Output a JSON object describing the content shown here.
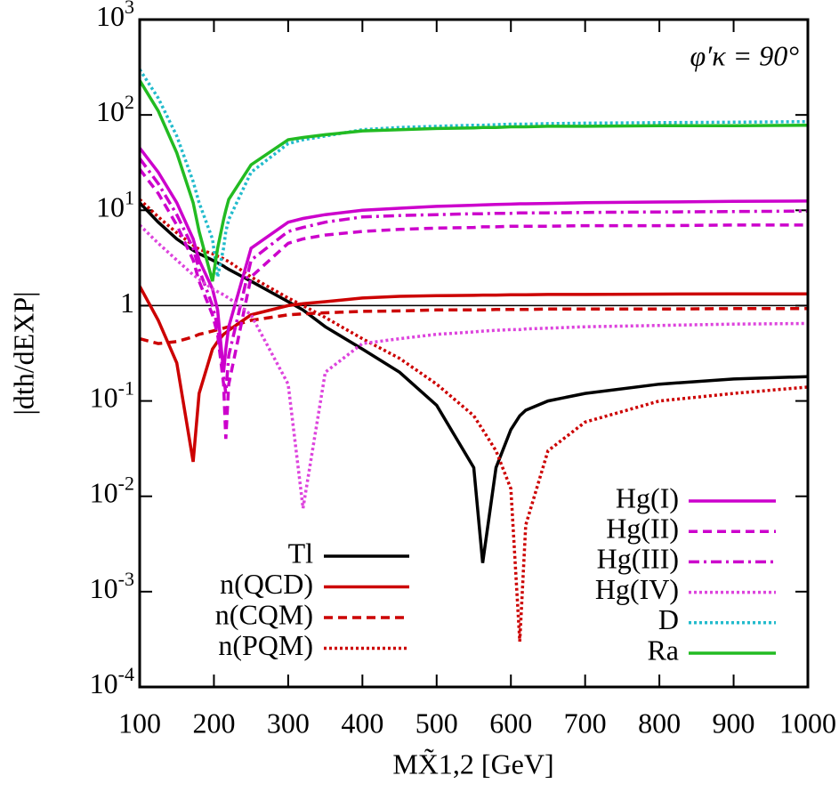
{
  "chart_data": {
    "type": "line",
    "y_label": "|dth/dEXP|",
    "x_label": "MX̃1,2 [GeV]",
    "annotation": "φ′κ = 90°",
    "y_scale": "log",
    "reference_line": 1,
    "xlim": [
      100,
      1000
    ],
    "xticks": [
      100,
      200,
      300,
      400,
      500,
      600,
      700,
      800,
      900,
      1000
    ],
    "ylim": [
      0.0001,
      1000
    ],
    "yticks": [
      {
        "value": 0.0001,
        "label": "10-4"
      },
      {
        "value": 0.001,
        "label": "10-3"
      },
      {
        "value": 0.01,
        "label": "10-2"
      },
      {
        "value": 0.1,
        "label": "10-1"
      },
      1,
      {
        "value": 10,
        "label": "101"
      },
      {
        "value": 100,
        "label": "102"
      },
      {
        "value": 1000,
        "label": "103"
      }
    ],
    "x": [
      100,
      125,
      150,
      172,
      180,
      198,
      205,
      213,
      216,
      220,
      250,
      300,
      320,
      350,
      400,
      450,
      500,
      550,
      562,
      580,
      600,
      612,
      620,
      650,
      700,
      800,
      900,
      1000
    ],
    "series": [
      {
        "name": "Tl",
        "color": "#000000",
        "style": "solid",
        "values": [
          12,
          7.5,
          5,
          3.8,
          3.5,
          3.0,
          2.8,
          2.6,
          2.5,
          2.4,
          1.8,
          1.1,
          0.9,
          0.6,
          0.35,
          0.2,
          0.09,
          0.02,
          0.002,
          0.02,
          0.05,
          0.07,
          0.08,
          0.1,
          0.12,
          0.15,
          0.17,
          0.18
        ]
      },
      {
        "name": "n(QCD)",
        "color": "#cc0000",
        "style": "solid",
        "values": [
          1.6,
          0.7,
          0.25,
          0.023,
          0.12,
          0.35,
          0.42,
          0.5,
          0.52,
          0.55,
          0.8,
          1.0,
          1.05,
          1.1,
          1.2,
          1.25,
          1.27,
          1.28,
          1.29,
          1.29,
          1.3,
          1.3,
          1.3,
          1.31,
          1.31,
          1.32,
          1.33,
          1.33
        ]
      },
      {
        "name": "n(CQM)",
        "color": "#cc0000",
        "style": "dashed",
        "values": [
          0.45,
          0.4,
          0.42,
          0.47,
          0.5,
          0.54,
          0.56,
          0.58,
          0.59,
          0.6,
          0.7,
          0.8,
          0.82,
          0.84,
          0.87,
          0.88,
          0.9,
          0.9,
          0.9,
          0.91,
          0.91,
          0.91,
          0.91,
          0.92,
          0.92,
          0.92,
          0.93,
          0.93
        ]
      },
      {
        "name": "n(PQM)",
        "color": "#cc0000",
        "style": "dotted",
        "values": [
          13,
          8.5,
          5.8,
          4.3,
          3.9,
          3.5,
          3.3,
          3.1,
          3.0,
          2.9,
          2.0,
          1.2,
          1.0,
          0.75,
          0.45,
          0.28,
          0.15,
          0.07,
          0.05,
          0.03,
          0.012,
          0.0003,
          0.005,
          0.03,
          0.06,
          0.1,
          0.12,
          0.14
        ]
      },
      {
        "name": "Hg(I)",
        "color": "#cc00cc",
        "style": "solid",
        "values": [
          45,
          25,
          12,
          5,
          3,
          1.5,
          0.9,
          0.2,
          0.35,
          0.6,
          4,
          7.5,
          8.2,
          9,
          10,
          10.5,
          11,
          11.3,
          11.4,
          11.5,
          11.6,
          11.7,
          11.7,
          11.8,
          12,
          12.2,
          12.4,
          12.5
        ]
      },
      {
        "name": "Hg(II)",
        "color": "#cc00cc",
        "style": "dashed",
        "values": [
          27,
          15,
          7,
          3,
          1.8,
          0.8,
          0.5,
          0.15,
          0.04,
          0.15,
          2,
          4.5,
          5,
          5.5,
          6,
          6.3,
          6.5,
          6.6,
          6.7,
          6.7,
          6.8,
          6.8,
          6.8,
          6.8,
          6.9,
          6.9,
          7,
          7
        ]
      },
      {
        "name": "Hg(III)",
        "color": "#cc00cc",
        "style": "dashdot",
        "values": [
          35,
          19,
          9,
          4,
          2.4,
          1,
          0.6,
          0.18,
          0.12,
          0.3,
          3,
          6,
          6.6,
          7.5,
          8.5,
          8.8,
          9,
          9.2,
          9.2,
          9.3,
          9.3,
          9.4,
          9.4,
          9.4,
          9.5,
          9.6,
          9.7,
          9.8
        ]
      },
      {
        "name": "Hg(IV)",
        "color": "#dd44dd",
        "style": "dotted",
        "values": [
          7,
          4.5,
          3,
          2.1,
          1.9,
          1.5,
          1.4,
          1.3,
          1.25,
          1.2,
          0.8,
          0.15,
          0.0075,
          0.2,
          0.4,
          0.45,
          0.5,
          0.53,
          0.54,
          0.55,
          0.56,
          0.56,
          0.57,
          0.58,
          0.6,
          0.62,
          0.64,
          0.65
        ]
      },
      {
        "name": "D",
        "color": "#22bbcc",
        "style": "dotted",
        "values": [
          300,
          150,
          60,
          20,
          12,
          5,
          2,
          4,
          6,
          8,
          25,
          50,
          55,
          60,
          70,
          74,
          76,
          78,
          78,
          79,
          80,
          80,
          80,
          81,
          82,
          83,
          84,
          85
        ]
      },
      {
        "name": "Ra",
        "color": "#22bb22",
        "style": "solid",
        "values": [
          230,
          110,
          40,
          12,
          6,
          1.8,
          4,
          8,
          10,
          13,
          30,
          55,
          58,
          62,
          68,
          70,
          72,
          73,
          74,
          74,
          75,
          75,
          75,
          76,
          76,
          77,
          77,
          78
        ]
      }
    ]
  }
}
